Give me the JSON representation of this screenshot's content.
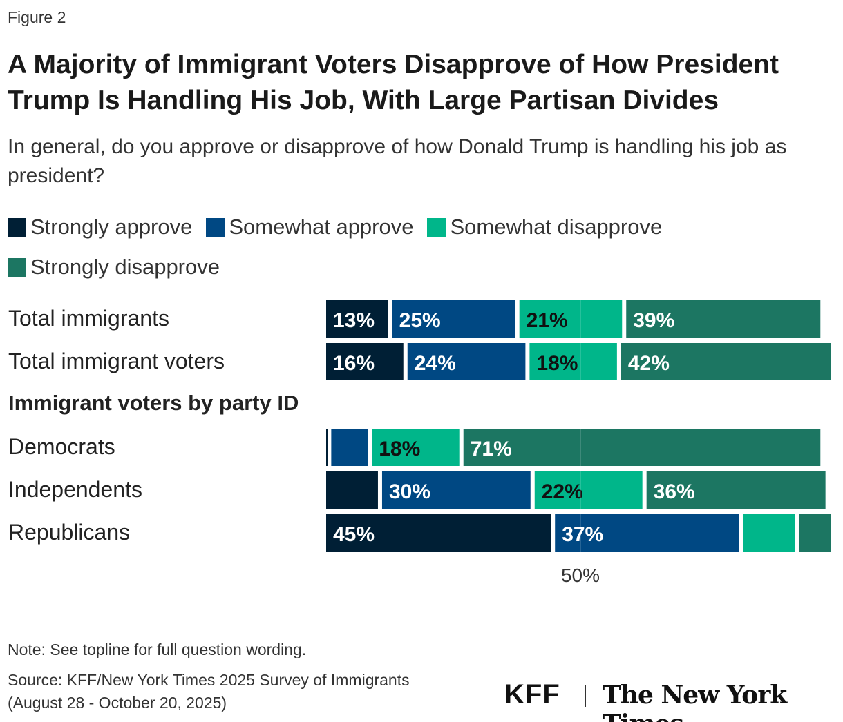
{
  "figure_label": "Figure 2",
  "title": "A Majority of Immigrant Voters Disapprove of How President Trump Is Handling His Job, With Large Partisan Divides",
  "subtitle": "In general, do you approve or disapprove of how Donald Trump is handling his job as president?",
  "chart_data": {
    "type": "bar",
    "orientation": "horizontal",
    "stacked": true,
    "categories": [
      "Total immigrants",
      "Total immigrant voters",
      "Democrats",
      "Independents",
      "Republicans"
    ],
    "group_heading": "Immigrant voters by party ID",
    "series": [
      {
        "name": "Strongly approve",
        "color": "#001f35",
        "values": [
          13,
          16,
          1,
          11,
          45
        ]
      },
      {
        "name": "Somewhat approve",
        "color": "#004883",
        "values": [
          25,
          24,
          8,
          30,
          37
        ]
      },
      {
        "name": "Somewhat disapprove",
        "color": "#00b68a",
        "values": [
          21,
          18,
          18,
          22,
          11
        ]
      },
      {
        "name": "Strongly disapprove",
        "color": "#1c7662",
        "values": [
          39,
          42,
          71,
          36,
          7
        ]
      }
    ],
    "xlim": [
      0,
      100
    ],
    "reference_line": {
      "value": 50,
      "label": "50%"
    },
    "legend_position": "top"
  },
  "note": "Note: See topline for full question wording.",
  "source": "Source: KFF/New York Times 2025 Survey of Immigrants",
  "source_dates": "(August 28 - October 20, 2025)",
  "logos": {
    "kff": "KFF",
    "nyt": "The New York Times"
  }
}
